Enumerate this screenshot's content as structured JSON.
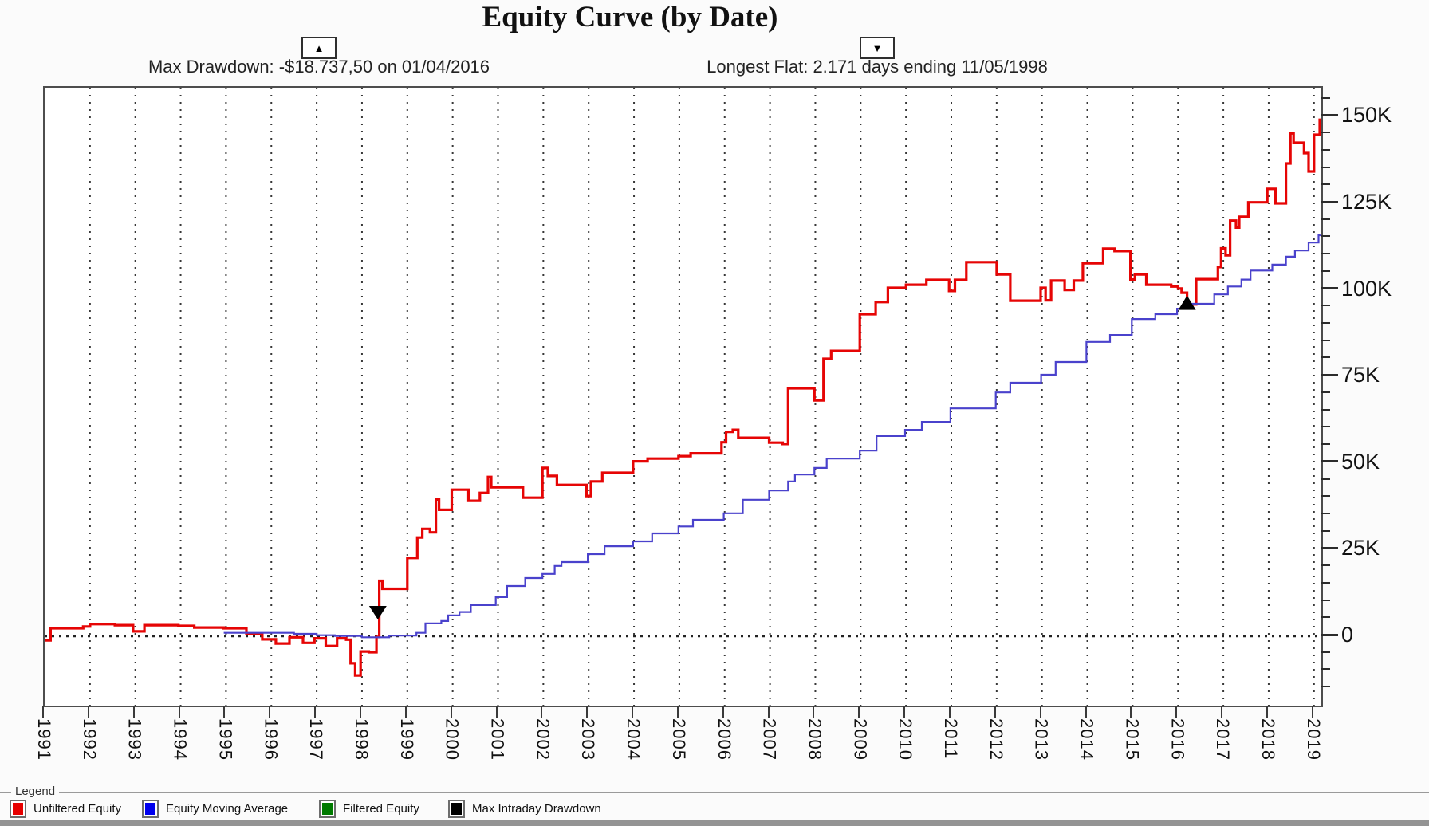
{
  "title": "Equity Curve (by Date)",
  "annotations": {
    "max_drawdown": {
      "label": "Max Drawdown: -$18.737,50 on 01/04/2016",
      "marker_glyph": "▲"
    },
    "longest_flat": {
      "label": "Longest Flat: 2.171 days ending 11/05/1998",
      "marker_glyph": "▼"
    }
  },
  "legend": {
    "group_label": "Legend",
    "items": [
      {
        "label": "Unfiltered Equity",
        "color": "#e60000",
        "x": 12
      },
      {
        "label": "Equity Moving Average",
        "color": "#0000ee",
        "x": 178
      },
      {
        "label": "Filtered Equity",
        "color": "#007a00",
        "x": 400
      },
      {
        "label": "Max Intraday Drawdown",
        "color": "#000000",
        "x": 562
      }
    ]
  },
  "chart_data": {
    "type": "line",
    "title": "Equity Curve (by Date)",
    "x_axis": {
      "years": [
        1991,
        1992,
        1993,
        1994,
        1995,
        1996,
        1997,
        1998,
        1999,
        2000,
        2001,
        2002,
        2003,
        2004,
        2005,
        2006,
        2007,
        2008,
        2009,
        2010,
        2011,
        2012,
        2013,
        2014,
        2015,
        2016,
        2017,
        2018,
        2019
      ]
    },
    "y_axis": {
      "tick_labels": [
        "0",
        "25K",
        "50K",
        "75K",
        "100K",
        "125K",
        "150K"
      ],
      "tick_values_k": [
        0,
        25,
        50,
        75,
        100,
        125,
        150
      ],
      "minor_step_k": 5,
      "minor_range_k": [
        -15,
        155
      ],
      "range_k": [
        -20.5,
        158
      ],
      "zero_line_dotted": true
    },
    "grid": {
      "vertical_dotted_per_year": true
    },
    "legend_position": "bottom",
    "series": [
      {
        "name": "Unfiltered Equity",
        "color": "#e60505",
        "width": 3.2,
        "points_year_valueK": [
          [
            1991.0,
            -1.2
          ],
          [
            1991.13,
            2.3
          ],
          [
            1991.85,
            2.8
          ],
          [
            1992.0,
            3.5
          ],
          [
            1992.55,
            3.2
          ],
          [
            1992.95,
            1.4
          ],
          [
            1993.2,
            3.2
          ],
          [
            1993.95,
            3.0
          ],
          [
            1994.3,
            2.5
          ],
          [
            1994.95,
            2.3
          ],
          [
            1995.45,
            0.7
          ],
          [
            1995.8,
            -0.9
          ],
          [
            1996.1,
            -2.1
          ],
          [
            1996.4,
            -0.3
          ],
          [
            1996.7,
            -1.9
          ],
          [
            1996.95,
            -0.6
          ],
          [
            1997.2,
            -2.8
          ],
          [
            1997.45,
            -0.6
          ],
          [
            1997.65,
            -1.0
          ],
          [
            1997.75,
            -7.8
          ],
          [
            1997.85,
            -11.3
          ],
          [
            1997.97,
            -4.4
          ],
          [
            1998.15,
            -4.6
          ],
          [
            1998.32,
            -0.2
          ],
          [
            1998.38,
            16.0
          ],
          [
            1998.45,
            13.7
          ],
          [
            1999.0,
            22.6
          ],
          [
            1999.22,
            28.5
          ],
          [
            1999.33,
            31.0
          ],
          [
            1999.5,
            30.0
          ],
          [
            1999.63,
            39.5
          ],
          [
            1999.7,
            36.5
          ],
          [
            1999.98,
            42.3
          ],
          [
            2000.35,
            39.1
          ],
          [
            2000.6,
            41.4
          ],
          [
            2000.78,
            46.0
          ],
          [
            2000.85,
            43.0
          ],
          [
            2001.55,
            40.0
          ],
          [
            2001.98,
            48.6
          ],
          [
            2002.1,
            46.3
          ],
          [
            2002.3,
            43.7
          ],
          [
            2002.95,
            40.5
          ],
          [
            2003.05,
            44.7
          ],
          [
            2003.3,
            47.2
          ],
          [
            2003.98,
            50.5
          ],
          [
            2004.3,
            51.3
          ],
          [
            2004.98,
            52.0
          ],
          [
            2005.25,
            52.8
          ],
          [
            2005.93,
            56.0
          ],
          [
            2006.03,
            59.0
          ],
          [
            2006.18,
            59.6
          ],
          [
            2006.3,
            57.3
          ],
          [
            2006.98,
            55.9
          ],
          [
            2007.28,
            55.5
          ],
          [
            2007.4,
            71.6
          ],
          [
            2007.98,
            68.1
          ],
          [
            2008.18,
            80.1
          ],
          [
            2008.35,
            82.4
          ],
          [
            2008.98,
            93.0
          ],
          [
            2009.33,
            96.5
          ],
          [
            2009.6,
            100.6
          ],
          [
            2010.0,
            101.5
          ],
          [
            2010.45,
            102.9
          ],
          [
            2010.95,
            99.7
          ],
          [
            2011.08,
            102.9
          ],
          [
            2011.33,
            108.0
          ],
          [
            2012.0,
            104.5
          ],
          [
            2012.3,
            96.9
          ],
          [
            2012.97,
            100.6
          ],
          [
            2013.08,
            97.0
          ],
          [
            2013.2,
            102.7
          ],
          [
            2013.5,
            100.0
          ],
          [
            2013.7,
            102.7
          ],
          [
            2013.9,
            107.7
          ],
          [
            2014.35,
            111.9
          ],
          [
            2014.6,
            111.2
          ],
          [
            2014.95,
            103.0
          ],
          [
            2015.05,
            104.5
          ],
          [
            2015.3,
            101.5
          ],
          [
            2015.85,
            101.0
          ],
          [
            2016.0,
            100.4
          ],
          [
            2016.08,
            99.2
          ],
          [
            2016.2,
            95.8
          ],
          [
            2016.4,
            103.1
          ],
          [
            2016.88,
            106.6
          ],
          [
            2016.95,
            112.0
          ],
          [
            2017.05,
            110.0
          ],
          [
            2017.15,
            120.0
          ],
          [
            2017.28,
            118.0
          ],
          [
            2017.35,
            121.1
          ],
          [
            2017.55,
            125.3
          ],
          [
            2017.97,
            129.2
          ],
          [
            2018.15,
            125.0
          ],
          [
            2018.38,
            136.5
          ],
          [
            2018.48,
            145.2
          ],
          [
            2018.55,
            142.5
          ],
          [
            2018.78,
            139.5
          ],
          [
            2018.88,
            134.2
          ],
          [
            2019.0,
            144.8
          ],
          [
            2019.15,
            146.0
          ],
          [
            2019.25,
            149.5
          ]
        ]
      },
      {
        "name": "Equity Moving Average",
        "color": "#4a42cc",
        "width": 2.2,
        "points_year_valueK": [
          [
            1994.95,
            1.0
          ],
          [
            1996.5,
            0.7
          ],
          [
            1997.0,
            0.3
          ],
          [
            1997.4,
            0.1
          ],
          [
            1998.0,
            -0.3
          ],
          [
            1998.6,
            0.2
          ],
          [
            1999.2,
            1.0
          ],
          [
            1999.4,
            3.7
          ],
          [
            1999.75,
            4.4
          ],
          [
            1999.9,
            6.0
          ],
          [
            2000.15,
            7.0
          ],
          [
            2000.4,
            9.0
          ],
          [
            2000.95,
            11.3
          ],
          [
            2001.2,
            14.5
          ],
          [
            2001.6,
            16.8
          ],
          [
            2001.98,
            18.0
          ],
          [
            2002.25,
            20.3
          ],
          [
            2002.4,
            21.4
          ],
          [
            2002.98,
            23.7
          ],
          [
            2003.35,
            26.0
          ],
          [
            2003.98,
            27.4
          ],
          [
            2004.4,
            29.7
          ],
          [
            2004.98,
            31.7
          ],
          [
            2005.3,
            33.6
          ],
          [
            2005.98,
            35.5
          ],
          [
            2006.4,
            39.4
          ],
          [
            2006.98,
            42.1
          ],
          [
            2007.4,
            44.7
          ],
          [
            2007.55,
            46.7
          ],
          [
            2007.98,
            48.6
          ],
          [
            2008.25,
            51.3
          ],
          [
            2008.98,
            53.6
          ],
          [
            2009.35,
            57.8
          ],
          [
            2009.98,
            59.6
          ],
          [
            2010.35,
            61.9
          ],
          [
            2010.98,
            65.8
          ],
          [
            2011.98,
            70.4
          ],
          [
            2012.3,
            73.2
          ],
          [
            2012.98,
            75.5
          ],
          [
            2013.3,
            79.2
          ],
          [
            2013.98,
            85.0
          ],
          [
            2014.5,
            87.0
          ],
          [
            2014.98,
            91.6
          ],
          [
            2015.5,
            93.0
          ],
          [
            2015.98,
            94.6
          ],
          [
            2016.25,
            96.0
          ],
          [
            2016.8,
            98.7
          ],
          [
            2017.1,
            101.0
          ],
          [
            2017.4,
            103.0
          ],
          [
            2017.6,
            105.6
          ],
          [
            2018.08,
            107.3
          ],
          [
            2018.38,
            109.6
          ],
          [
            2018.58,
            111.4
          ],
          [
            2018.88,
            113.7
          ],
          [
            2019.1,
            115.8
          ],
          [
            2019.28,
            116.0
          ]
        ]
      },
      {
        "name": "Filtered Equity",
        "color": "#007a00",
        "width": 2,
        "points_year_valueK": []
      },
      {
        "name": "Max Intraday Drawdown",
        "color": "#000000",
        "width": 2,
        "points_year_valueK": []
      }
    ],
    "markers": [
      {
        "shape": "triangle-down",
        "year": 1998.35,
        "value_k": 6.9
      },
      {
        "shape": "triangle-up",
        "year": 2016.2,
        "value_k": 96.3
      }
    ]
  }
}
